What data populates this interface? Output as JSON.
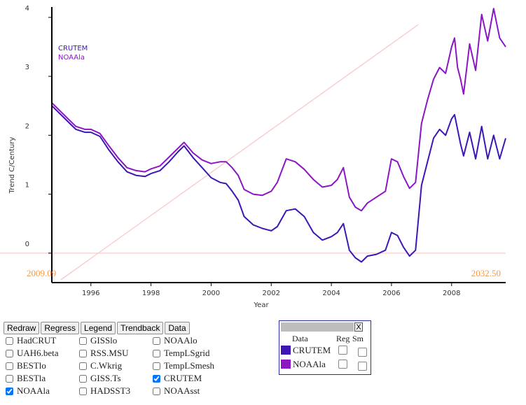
{
  "chart_data": {
    "type": "line",
    "title": "",
    "xlabel": "Year",
    "ylabel": "Trend C/Century",
    "xlim": [
      1994.7,
      2009.8
    ],
    "ylim": [
      -0.5,
      4.2
    ],
    "xticks": [
      "1996",
      "1998",
      "2000",
      "2002",
      "2004",
      "2006",
      "2008"
    ],
    "yticks": [
      "0",
      "1",
      "2",
      "3",
      "4"
    ],
    "legend_placement": "top-left",
    "grid": false,
    "corner_labels": {
      "left": "2009.09",
      "right": "2032.50"
    },
    "reference_colors": {
      "zero_line": "#f9dede",
      "diagonal": "#f8cccc"
    },
    "series": [
      {
        "name": "CRUTEM",
        "color": "#3d16b5",
        "x": [
          1994.7,
          1995.0,
          1995.3,
          1995.5,
          1995.8,
          1996.0,
          1996.3,
          1996.6,
          1996.9,
          1997.2,
          1997.5,
          1997.8,
          1998.0,
          1998.3,
          1998.6,
          1998.9,
          1999.1,
          1999.4,
          1999.7,
          2000.0,
          2000.3,
          2000.5,
          2000.7,
          2000.9,
          2001.1,
          2001.4,
          2001.7,
          2002.0,
          2002.2,
          2002.5,
          2002.8,
          2003.1,
          2003.4,
          2003.7,
          2004.0,
          2004.2,
          2004.4,
          2004.6,
          2004.8,
          2005.0,
          2005.2,
          2005.5,
          2005.8,
          2006.0,
          2006.2,
          2006.4,
          2006.6,
          2006.8,
          2007.0,
          2007.2,
          2007.4,
          2007.6,
          2007.8,
          2008.0,
          2008.1,
          2008.2,
          2008.3,
          2008.4,
          2008.6,
          2008.8,
          2009.0,
          2009.2,
          2009.4,
          2009.6,
          2009.8
        ],
        "values": [
          2.5,
          2.35,
          2.2,
          2.1,
          2.05,
          2.05,
          1.98,
          1.75,
          1.55,
          1.38,
          1.32,
          1.3,
          1.35,
          1.4,
          1.55,
          1.72,
          1.82,
          1.62,
          1.45,
          1.28,
          1.2,
          1.18,
          1.05,
          0.9,
          0.62,
          0.48,
          0.42,
          0.38,
          0.45,
          0.72,
          0.75,
          0.62,
          0.35,
          0.22,
          0.28,
          0.35,
          0.5,
          0.05,
          -0.08,
          -0.15,
          -0.05,
          -0.02,
          0.05,
          0.35,
          0.3,
          0.1,
          -0.05,
          0.05,
          1.15,
          1.55,
          1.95,
          2.1,
          2.0,
          2.28,
          2.35,
          2.1,
          1.85,
          1.65,
          2.05,
          1.6,
          2.15,
          1.6,
          2.0,
          1.6,
          1.95
        ]
      },
      {
        "name": "NOAAla",
        "color": "#8a16c4",
        "x": [
          1994.7,
          1995.0,
          1995.3,
          1995.5,
          1995.8,
          1996.0,
          1996.3,
          1996.6,
          1996.9,
          1997.2,
          1997.5,
          1997.8,
          1998.0,
          1998.3,
          1998.6,
          1998.9,
          1999.1,
          1999.4,
          1999.7,
          2000.0,
          2000.3,
          2000.5,
          2000.7,
          2000.9,
          2001.1,
          2001.4,
          2001.7,
          2002.0,
          2002.2,
          2002.5,
          2002.8,
          2003.1,
          2003.4,
          2003.7,
          2004.0,
          2004.2,
          2004.4,
          2004.6,
          2004.8,
          2005.0,
          2005.2,
          2005.5,
          2005.8,
          2006.0,
          2006.2,
          2006.4,
          2006.6,
          2006.8,
          2007.0,
          2007.2,
          2007.4,
          2007.6,
          2007.8,
          2008.0,
          2008.1,
          2008.2,
          2008.3,
          2008.4,
          2008.6,
          2008.8,
          2009.0,
          2009.2,
          2009.4,
          2009.6,
          2009.8
        ],
        "values": [
          2.55,
          2.4,
          2.25,
          2.15,
          2.1,
          2.1,
          2.03,
          1.82,
          1.62,
          1.45,
          1.4,
          1.38,
          1.43,
          1.48,
          1.63,
          1.78,
          1.88,
          1.7,
          1.58,
          1.52,
          1.55,
          1.55,
          1.45,
          1.32,
          1.08,
          1.0,
          0.98,
          1.05,
          1.2,
          1.6,
          1.55,
          1.42,
          1.25,
          1.12,
          1.15,
          1.25,
          1.45,
          0.95,
          0.78,
          0.72,
          0.85,
          0.95,
          1.05,
          1.6,
          1.55,
          1.3,
          1.1,
          1.2,
          2.2,
          2.6,
          2.95,
          3.15,
          3.05,
          3.5,
          3.65,
          3.15,
          2.95,
          2.7,
          3.55,
          3.1,
          4.05,
          3.6,
          4.15,
          3.65,
          3.5
        ]
      }
    ]
  },
  "toolbar": {
    "buttons": [
      "Redraw",
      "Regress",
      "Legend",
      "Trendback",
      "Data"
    ]
  },
  "datasets": [
    {
      "label": "HadCRUT",
      "checked": false
    },
    {
      "label": "GISSlo",
      "checked": false
    },
    {
      "label": "NOAAlo",
      "checked": false
    },
    {
      "label": "UAH6.beta",
      "checked": false
    },
    {
      "label": "RSS.MSU",
      "checked": false
    },
    {
      "label": "TempLSgrid",
      "checked": false
    },
    {
      "label": "BESTlo",
      "checked": false
    },
    {
      "label": "C.Wkrig",
      "checked": false
    },
    {
      "label": "TempLSmesh",
      "checked": false
    },
    {
      "label": "BESTla",
      "checked": false
    },
    {
      "label": "GISS.Ts",
      "checked": false
    },
    {
      "label": "CRUTEM",
      "checked": true
    },
    {
      "label": "NOAAla",
      "checked": true
    },
    {
      "label": "HADSST3",
      "checked": false
    },
    {
      "label": "NOAAsst",
      "checked": false
    }
  ],
  "data_panel": {
    "close_label": "X",
    "headers": {
      "data": "Data",
      "reg": "Reg",
      "sm": "Sm"
    },
    "rows": [
      {
        "name": "CRUTEM",
        "color": "#3d16b5"
      },
      {
        "name": "NOAAla",
        "color": "#8a16c4"
      }
    ]
  }
}
